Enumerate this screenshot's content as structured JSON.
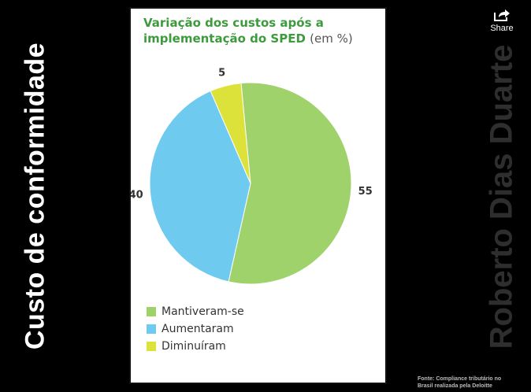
{
  "slide": {
    "side_title": "Custo de conformidade",
    "author_watermark": "Roberto Dias Duarte",
    "source_line1": "Fonte: Compliance tributário no",
    "source_line2": "Brasil realizada pela Deloitte"
  },
  "share": {
    "label": "Share",
    "icon": "share-icon"
  },
  "chart_data": {
    "type": "pie",
    "title_main": "Variação dos custos após a implementação do SPED",
    "title_unit": "(em %)",
    "slices": [
      {
        "label": "Mantiveram-se",
        "value": 55,
        "color": "#9fd26a"
      },
      {
        "label": "Aumentaram",
        "value": 40,
        "color": "#6fcaf0"
      },
      {
        "label": "Diminuíram",
        "value": 5,
        "color": "#dde23a"
      }
    ],
    "legend_position": "bottom-left"
  }
}
